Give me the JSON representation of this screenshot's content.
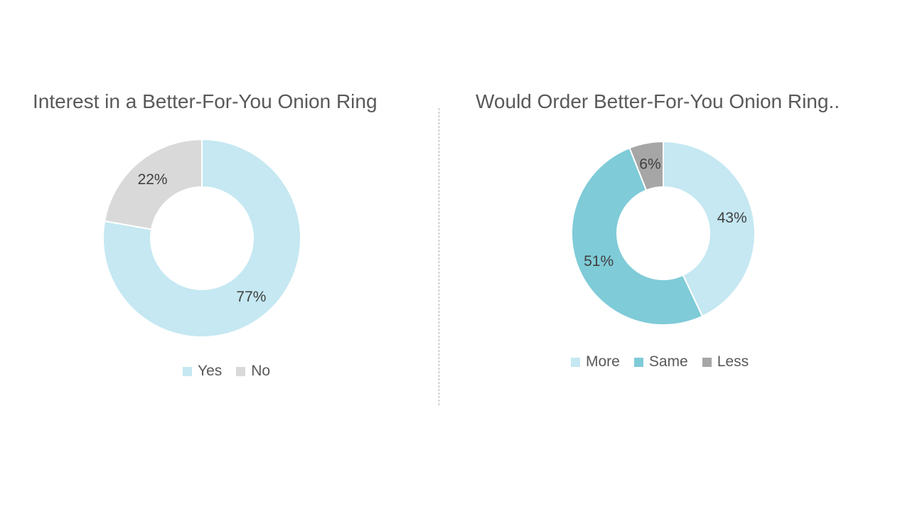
{
  "chart_data": [
    {
      "type": "pie",
      "title": "Interest in a Better-For-You Onion Ring",
      "categories": [
        "Yes",
        "No"
      ],
      "values": [
        77,
        22
      ],
      "data_labels": [
        "77%",
        "22%"
      ],
      "colors": [
        "#c5e8f2",
        "#d9d9d9"
      ],
      "legend_position": "bottom",
      "donut": true
    },
    {
      "type": "pie",
      "title": "Would Order Better-For-You Onion Ring..",
      "categories": [
        "More",
        "Same",
        "Less"
      ],
      "values": [
        43,
        51,
        6
      ],
      "data_labels": [
        "43%",
        "51%",
        "6%"
      ],
      "colors": [
        "#c5e8f2",
        "#7fcbd8",
        "#a6a6a6"
      ],
      "legend_position": "bottom",
      "donut": true
    }
  ]
}
